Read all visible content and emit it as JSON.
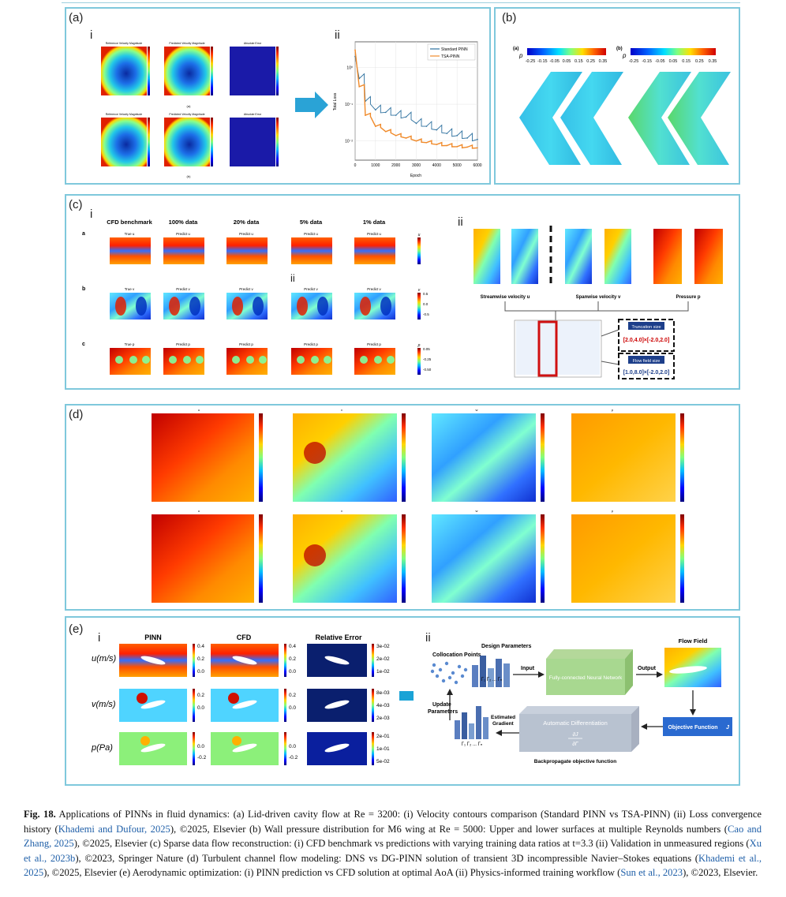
{
  "panels": {
    "a": {
      "label": "(a)",
      "sub_i": "i",
      "sub_ii": "ii",
      "thumb_titles_top": [
        "Reference Velocity Magnitude",
        "Predicted Velocity Magnitude",
        "Absolute Error"
      ],
      "thumb_titles_bottom": [
        "Reference Velocity Magnitude",
        "Predicted Velocity Magnitude",
        "Absolute Error"
      ],
      "sub_a": "(a)",
      "sub_b": "(b)"
    },
    "b": {
      "label": "(b)",
      "sub_a": "(a)",
      "sub_b": "(b)",
      "var": "p",
      "ticks": [
        "-0.25",
        "-0.15",
        "-0.05",
        "0.05",
        "0.15",
        "0.25",
        "0.35"
      ]
    },
    "c": {
      "label": "(c)",
      "sub_i": "i",
      "sub_ii": "ii",
      "sub_ii_inner": "ii",
      "col_headers": [
        "CFD benchmark",
        "100% data",
        "20% data",
        "5% data",
        "1% data"
      ],
      "row_letters": [
        "a",
        "b",
        "c"
      ],
      "row_titles": [
        [
          "True u",
          "Predict u",
          "Predict u",
          "Predict u",
          "Predict u"
        ],
        [
          "True v",
          "Predict v",
          "Predict v",
          "Predict v",
          "Predict v"
        ],
        [
          "True p",
          "Predict p",
          "Predict p",
          "Predict p",
          "Predict p"
        ]
      ],
      "cbar_labels": [
        "u",
        "v",
        "p"
      ],
      "cbar_ticks_v": [
        "0.5",
        "0.0",
        "-0.5"
      ],
      "cbar_ticks_p": [
        "0.05",
        "-0.25",
        "-0.50"
      ],
      "right_labels": [
        "Streamwise velocity u",
        "Spanwise velocity v",
        "Pressure p"
      ],
      "box_titles": [
        "Truncation size",
        "Flow field size"
      ],
      "box_values": [
        "[2.0,4.0]×[-2.0,2.0]",
        "[1.0,8.0]×[-2.0,2.0]"
      ]
    },
    "d": {
      "label": "(d)",
      "top_titles": [
        "u",
        "v",
        "w",
        "p"
      ],
      "bottom_titles": [
        "u",
        "v",
        "w",
        "p"
      ]
    },
    "e": {
      "label": "(e)",
      "sub_i": "i",
      "sub_ii": "ii",
      "col_headers": [
        "PINN",
        "CFD",
        "Relative Error"
      ],
      "row_labels": [
        "u(m/s)",
        "v(m/s)",
        "p(Pa)"
      ],
      "ticks_u": [
        "0.4",
        "0.2",
        "0.0"
      ],
      "ticks_v": [
        "0.2",
        "0.0"
      ],
      "ticks_p": [
        "0.0",
        "-0.2"
      ],
      "err_ticks_u": [
        "3e-02",
        "2e-02",
        "1e-02"
      ],
      "err_ticks_v": [
        "8e-03",
        "4e-03",
        "2e-03"
      ],
      "err_ticks_p": [
        "2e-01",
        "1e-01",
        "5e-02"
      ],
      "workflow": {
        "design_params": "Design Parameters",
        "collocation": "Collocation Points",
        "input": "Input",
        "nn": "Fully-connected Neural Network",
        "output": "Output",
        "flow_field": "Flow Field",
        "objective": "Objective Function",
        "objective_sym": "J",
        "auto_diff": "Automatic Differentiation",
        "grad_num": "∂J",
        "grad_den": "∂Γ",
        "estimated": "Estimated",
        "gradient": "Gradient",
        "update": "Update",
        "parameters": "Parameters",
        "backprop": "Backpropagate objective function",
        "gamma_seq": "Γ₁ Γ₂ ... Γₙ"
      }
    }
  },
  "loss_chart": {
    "legend": [
      "Standard PINN",
      "TSA-PINN"
    ],
    "xlabel": "Epoch",
    "ylabel": "Total Loss",
    "xticks": [
      "0",
      "1000",
      "2000",
      "3000",
      "4000",
      "5000",
      "6000"
    ],
    "yticks": [
      "10⁰",
      "10⁻¹",
      "10⁻²"
    ],
    "colors": {
      "standard": "#2b6f9e",
      "tsa": "#f08a2a"
    }
  },
  "chart_data": {
    "type": "line",
    "title": "",
    "xlabel": "Epoch",
    "ylabel": "Total Loss",
    "y_scale": "log",
    "xlim": [
      0,
      6000
    ],
    "series": [
      {
        "name": "Standard PINN",
        "x": [
          0,
          200,
          500,
          1000,
          1500,
          2000,
          2500,
          3000,
          3500,
          4000,
          4500,
          5000,
          5500,
          6000
        ],
        "y": [
          2.0,
          0.5,
          0.12,
          0.07,
          0.06,
          0.05,
          0.045,
          0.03,
          0.025,
          0.02,
          0.016,
          0.014,
          0.012,
          0.011
        ]
      },
      {
        "name": "TSA-PINN",
        "x": [
          0,
          200,
          500,
          1000,
          1500,
          2000,
          2500,
          3000,
          3500,
          4000,
          4500,
          5000,
          5500,
          6000
        ],
        "y": [
          3.0,
          0.3,
          0.05,
          0.025,
          0.018,
          0.014,
          0.012,
          0.01,
          0.009,
          0.008,
          0.0075,
          0.007,
          0.0068,
          0.0065
        ]
      }
    ]
  },
  "caption": {
    "fig": "Fig. 18.",
    "t1": " Applications of PINNs in fluid dynamics: (a) Lid-driven cavity flow at Re = 3200: (i) Velocity contours comparison (Standard PINN vs TSA-PINN) (ii) Loss convergence history (",
    "r1": "Khademi and Dufour, 2025",
    "t2": "), ©2025, Elsevier (b) Wall pressure distribution for M6 wing at Re = 5000: Upper and lower surfaces at multiple Reynolds numbers (",
    "r2": "Cao and Zhang, 2025",
    "t3": "), ©2025, Elsevier (c) Sparse data flow reconstruction: (i) CFD benchmark vs predictions with varying training data ratios at t=3.3 (ii) Validation in unmeasured regions (",
    "r3": "Xu et al., 2023b",
    "t4": "), ©2023, Springer Nature (d) Turbulent channel flow modeling: DNS vs DG-PINN solution of transient 3D incompressible Navier–Stokes equations (",
    "r4": "Khademi et al., 2025",
    "t5": "), ©2025, Elsevier (e) Aerodynamic optimization: (i) PINN prediction vs CFD solution at optimal AoA (ii) Physics-informed training workflow (",
    "r5": "Sun et al., 2023",
    "t6": "), ©2023, Elsevier."
  }
}
